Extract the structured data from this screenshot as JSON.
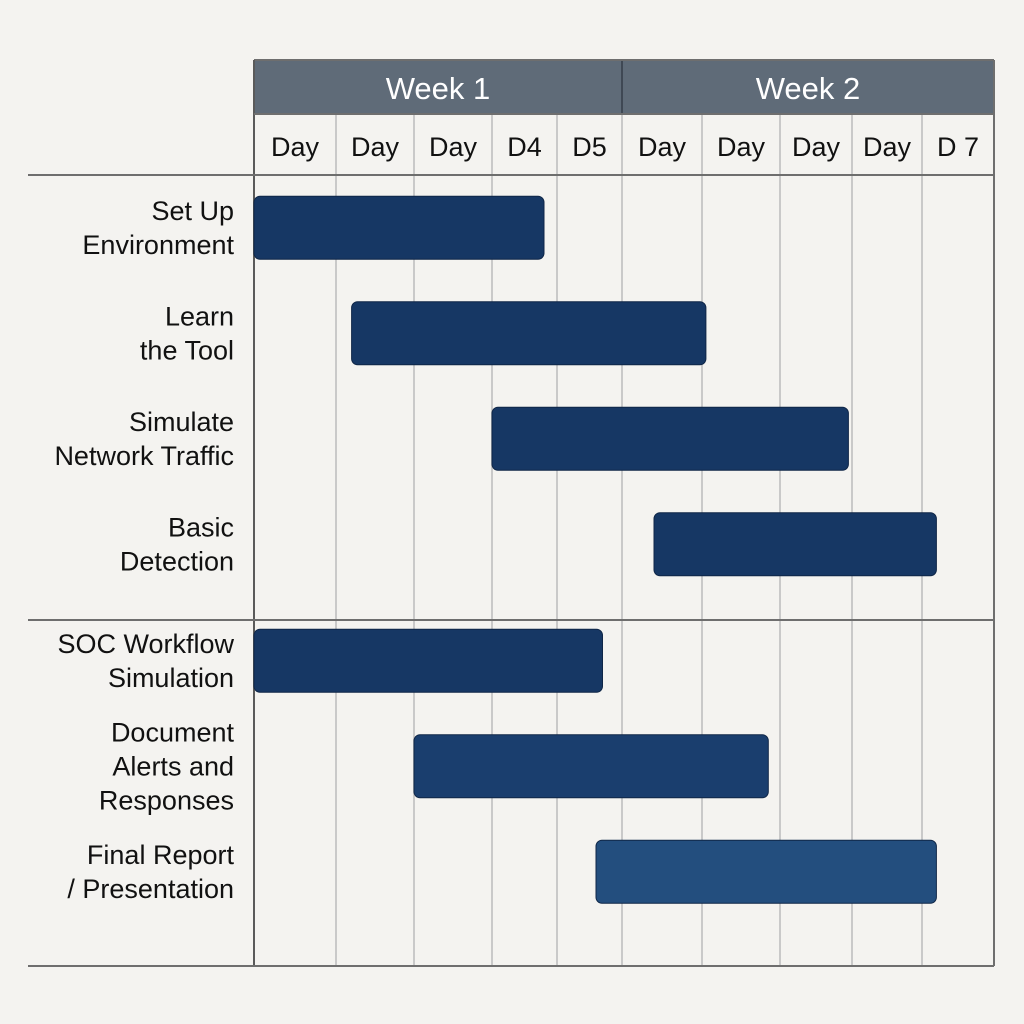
{
  "chart_data": {
    "type": "gantt",
    "columns": [
      {
        "week": "Week 1",
        "label": "Day"
      },
      {
        "week": "Week 1",
        "label": "Day"
      },
      {
        "week": "Week 1",
        "label": "Day"
      },
      {
        "week": "Week 1",
        "label": "D4"
      },
      {
        "week": "Week 1",
        "label": "D5"
      },
      {
        "week": "Week 2",
        "label": "Day"
      },
      {
        "week": "Week 2",
        "label": "Day"
      },
      {
        "week": "Week 2",
        "label": "Day"
      },
      {
        "week": "Week 2",
        "label": "Day"
      },
      {
        "week": "Week 2",
        "label": "D 7"
      }
    ],
    "weeks": [
      {
        "label": "Week 1",
        "start": 0,
        "end": 5
      },
      {
        "label": "Week 2",
        "start": 5,
        "end": 10
      }
    ],
    "groups": [
      {
        "tasks": [
          {
            "label": [
              "Set Up",
              "Environment"
            ],
            "start": 0.0,
            "end": 3.8,
            "color": "#163764"
          },
          {
            "label": [
              "Learn",
              "the Tool"
            ],
            "start": 1.2,
            "end": 6.05,
            "color": "#163764"
          },
          {
            "label": [
              "Simulate",
              "Network Traffic"
            ],
            "start": 3.0,
            "end": 7.95,
            "color": "#163764"
          },
          {
            "label": [
              "Basic",
              "Detection"
            ],
            "start": 5.4,
            "end": 9.2,
            "color": "#163764"
          }
        ]
      },
      {
        "tasks": [
          {
            "label": [
              "SOC Workflow",
              "Simulation"
            ],
            "start": 0.0,
            "end": 4.7,
            "color": "#163764"
          },
          {
            "label": [
              "Document",
              "Alerts and",
              "Responses"
            ],
            "start": 2.0,
            "end": 6.85,
            "color": "#1a3e6e"
          },
          {
            "label": [
              "Final Report",
              "/ Presentation"
            ],
            "start": 4.6,
            "end": 9.2,
            "color": "#234e7e"
          }
        ]
      }
    ],
    "colors": {
      "header_fill": "#5f6b78",
      "bar": "#163764",
      "bar_light": "#234e7e",
      "background": "#f4f3f0"
    }
  }
}
